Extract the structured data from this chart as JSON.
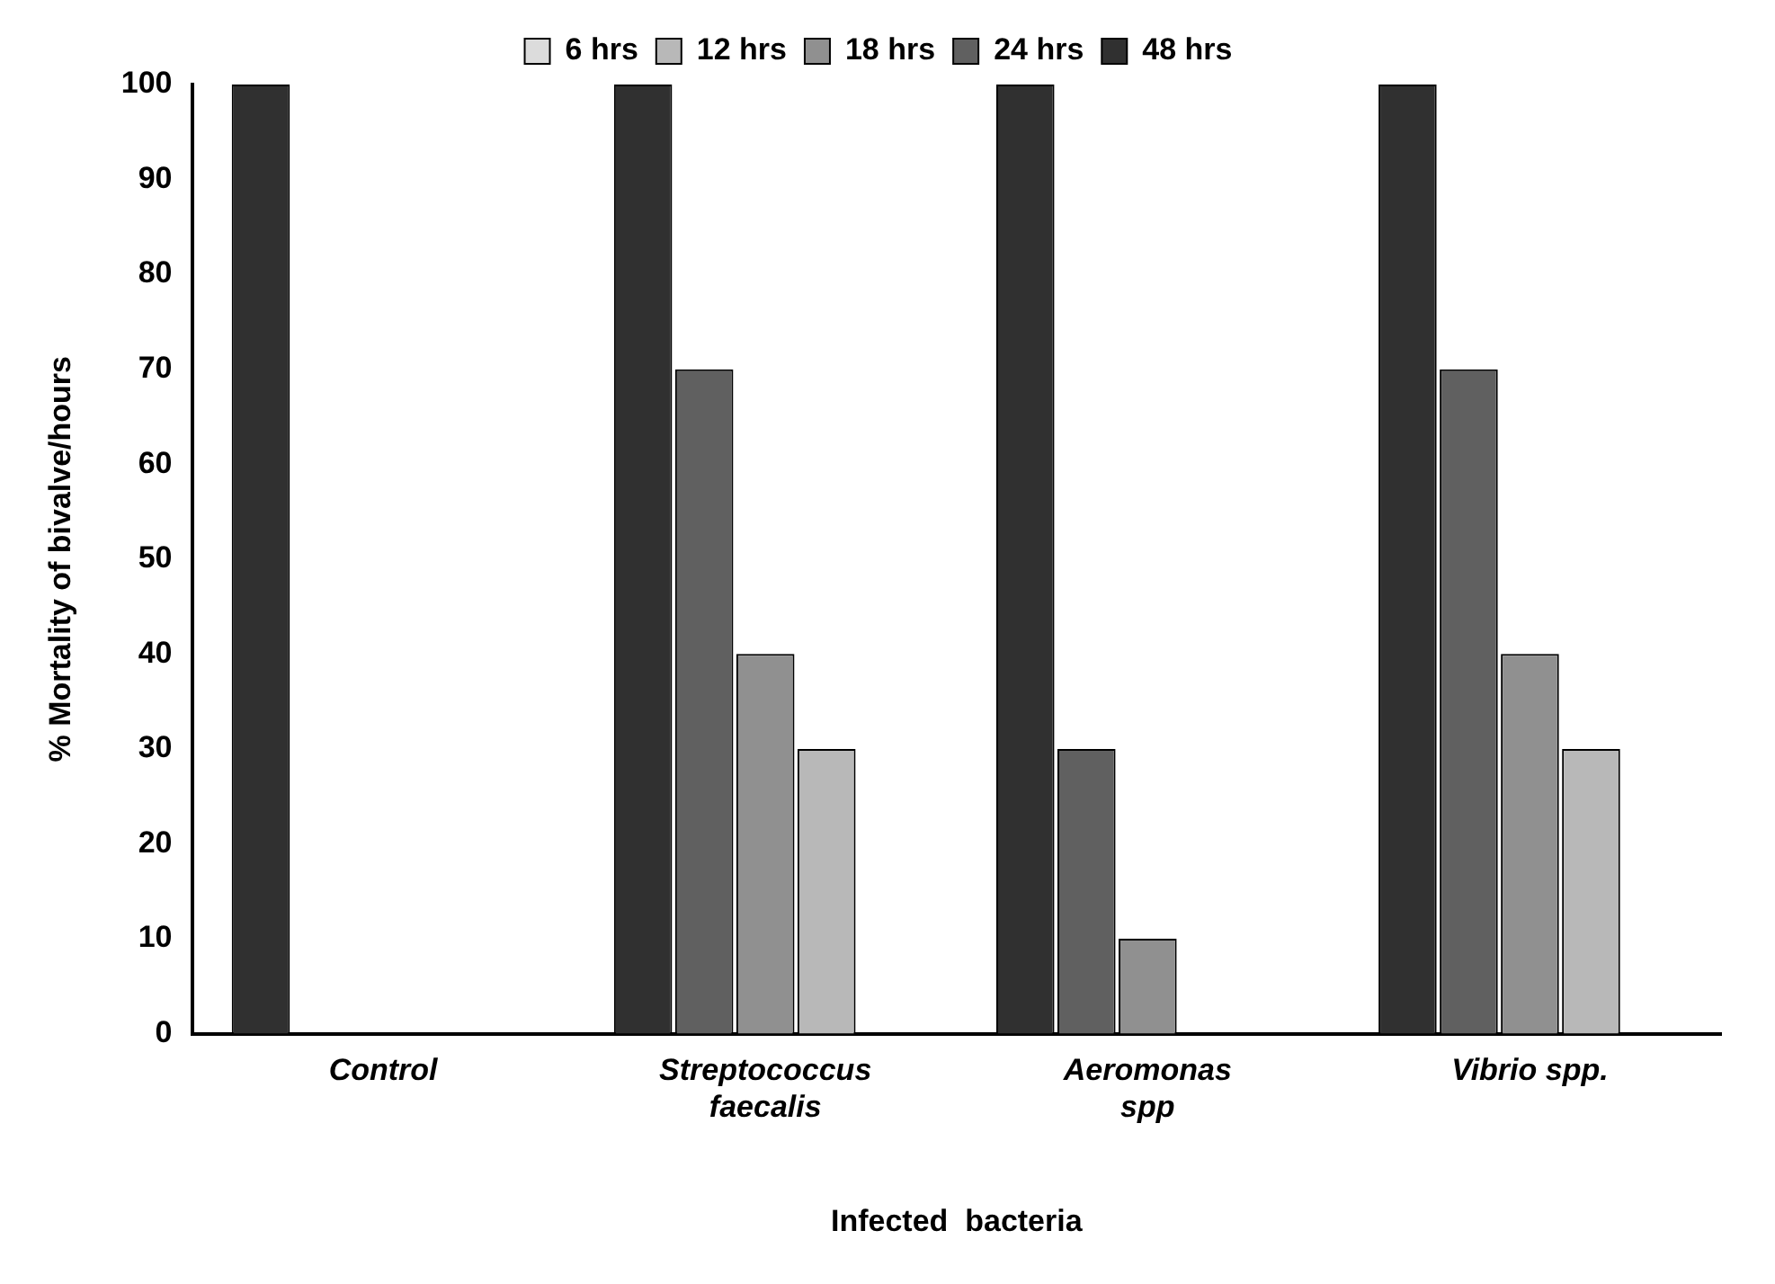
{
  "chart_data": {
    "type": "bar",
    "xlabel": "Infected  bacteria",
    "ylabel": "% Mortality of bivalve/hours",
    "categories": [
      "Control",
      "Streptococcus faecalis",
      "Aeromonas spp",
      "Vibrio spp."
    ],
    "series": [
      {
        "name": "48 hrs",
        "color": "#303030",
        "values": [
          100,
          100,
          100,
          100
        ]
      },
      {
        "name": "24 hrs",
        "color": "#606060",
        "values": [
          0,
          70,
          30,
          70
        ]
      },
      {
        "name": "18 hrs",
        "color": "#909090",
        "values": [
          0,
          40,
          10,
          40
        ]
      },
      {
        "name": "12 hrs",
        "color": "#b8b8b8",
        "values": [
          0,
          30,
          0,
          30
        ]
      },
      {
        "name": "6 hrs",
        "color": "#dcdcdc",
        "values": [
          0,
          0,
          0,
          0
        ]
      }
    ],
    "ylim": [
      0,
      100
    ],
    "yticks": [
      0,
      10,
      20,
      30,
      40,
      50,
      60,
      70,
      80,
      90,
      100
    ],
    "grid": false,
    "legend": "top"
  }
}
